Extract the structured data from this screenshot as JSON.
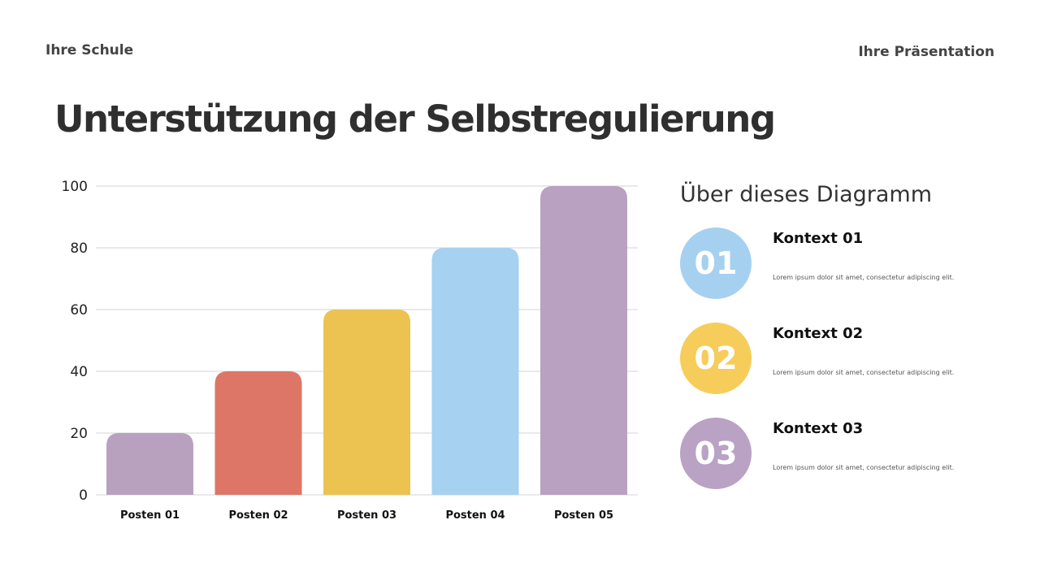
{
  "header": {
    "school": "Ihre Schule",
    "presentation": "Ihre Präsentation"
  },
  "title": "Unterstützung der Selbstregulierung",
  "about": {
    "heading": "Über dieses Diagramm",
    "items": [
      {
        "number": "01",
        "title": "Kontext 01",
        "text": "Lorem ipsum dolor sit amet, consectetur adipiscing elit.",
        "color": "#a6d0f0"
      },
      {
        "number": "02",
        "title": "Kontext 02",
        "text": "Lorem ipsum dolor sit amet, consectetur adipiscing elit.",
        "color": "#f6cd5a"
      },
      {
        "number": "03",
        "title": "Kontext 03",
        "text": "Lorem ipsum dolor sit amet, consectetur adipiscing elit.",
        "color": "#b9a2c4"
      }
    ]
  },
  "chart_data": {
    "type": "bar",
    "categories": [
      "Posten 01",
      "Posten 02",
      "Posten 03",
      "Posten 04",
      "Posten 05"
    ],
    "values": [
      20,
      40,
      60,
      80,
      100
    ],
    "colors": [
      "#b8a1bf",
      "#dd7667",
      "#ecc350",
      "#a6d1f1",
      "#b9a1c1"
    ],
    "ylim": [
      0,
      100
    ],
    "yticks": [
      0,
      20,
      40,
      60,
      80,
      100
    ],
    "grid": true
  }
}
